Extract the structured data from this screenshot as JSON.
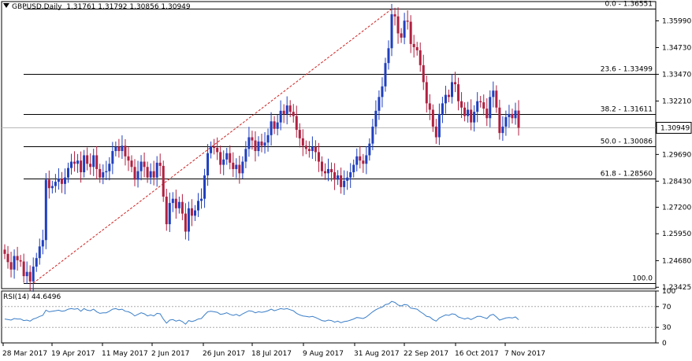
{
  "header": {
    "symbol": "GBPUSD,Daily",
    "ohlc": "1.31761 1.31792 1.30856 1.30949"
  },
  "rsi_header": {
    "label": "RSI(14) 44.6496"
  },
  "colors": {
    "bull": "#1f3fbf",
    "bear": "#b02040",
    "rsi_line": "#3a7ec8",
    "fib_line": "#000000",
    "trend_line": "#d02020",
    "level_box_fill": "#ffffff"
  },
  "chart_data": [
    {
      "type": "candlestick",
      "title": "GBPUSD,Daily",
      "y_ticks": [
        "1.35990",
        "1.34730",
        "1.33470",
        "1.32210",
        "1.30949",
        "1.29690",
        "1.28430",
        "1.27200",
        "1.25950",
        "1.24680",
        "1.23425"
      ],
      "y_range": [
        1.2336,
        1.369
      ],
      "current_price": "1.30949",
      "x_ticks": [
        "28 Mar 2017",
        "19 Apr 2017",
        "11 May 2017",
        "2 Jun 2017",
        "26 Jun 2017",
        "18 Jul 2017",
        "9 Aug 2017",
        "31 Aug 2017",
        "22 Sep 2017",
        "16 Oct 2017",
        "7 Nov 2017"
      ],
      "fib_levels": [
        {
          "label": "0.0 - 1.36551",
          "value": 1.36551
        },
        {
          "label": "23.6 - 1.33499",
          "value": 1.33499
        },
        {
          "label": "38.2 - 1.31611",
          "value": 1.31611
        },
        {
          "label": "50.0 - 1.30086",
          "value": 1.30086
        },
        {
          "label": "61.8 - 1.28560",
          "value": 1.2856
        },
        {
          "label": "100.0",
          "value": 1.2362
        }
      ],
      "trend_line": {
        "from": 1.2362,
        "to": 1.3655
      },
      "series": [
        {
          "name": "GBPUSD",
          "values": [
            1.25,
            1.2461,
            1.2426,
            1.249,
            1.247,
            1.2464,
            1.2395,
            1.2415,
            1.237,
            1.244,
            1.248,
            1.2535,
            1.2565,
            1.285,
            1.281,
            1.282,
            1.284,
            1.2855,
            1.283,
            1.286,
            1.2905,
            1.2935,
            1.2925,
            1.294,
            1.2885,
            1.2965,
            1.2925,
            1.291,
            1.2965,
            1.29,
            1.286,
            1.2885,
            1.289,
            1.2925,
            1.2985,
            1.3005,
            1.2985,
            1.301,
            1.296,
            1.294,
            1.291,
            1.285,
            1.289,
            1.2935,
            1.291,
            1.286,
            1.289,
            1.286,
            1.293,
            1.2915,
            1.277,
            1.264,
            1.274,
            1.276,
            1.2715,
            1.2745,
            1.269,
            1.2605,
            1.2715,
            1.268,
            1.2705,
            1.275,
            1.276,
            1.287,
            1.2975,
            1.3005,
            1.3,
            1.298,
            1.292,
            1.2945,
            1.2975,
            1.293,
            1.29,
            1.292,
            1.288,
            1.2935,
            1.2995,
            1.305,
            1.3035,
            1.2985,
            1.303,
            1.301,
            1.3025,
            1.306,
            1.3125,
            1.309,
            1.312,
            1.3175,
            1.316,
            1.32,
            1.317,
            1.315,
            1.3085,
            1.3045,
            1.301,
            1.2995,
            1.2985,
            1.3005,
            1.298,
            1.2935,
            1.289,
            1.288,
            1.29,
            1.2885,
            1.285,
            1.287,
            1.2815,
            1.2845,
            1.286,
            1.2885,
            1.292,
            1.296,
            1.294,
            1.2925,
            1.2965,
            1.302,
            1.31,
            1.3175,
            1.324,
            1.329,
            1.34,
            1.347,
            1.363,
            1.362,
            1.354,
            1.352,
            1.36,
            1.3595,
            1.349,
            1.3475,
            1.346,
            1.339,
            1.331,
            1.321,
            1.318,
            1.31,
            1.305,
            1.316,
            1.321,
            1.325,
            1.324,
            1.331,
            1.33,
            1.322,
            1.319,
            1.315,
            1.318,
            1.312,
            1.317,
            1.322,
            1.3215,
            1.3185,
            1.314,
            1.324,
            1.327,
            1.319,
            1.307,
            1.31,
            1.3145,
            1.316,
            1.314,
            1.3176,
            1.3095
          ]
        }
      ]
    },
    {
      "type": "line",
      "title": "RSI(14) 44.6496",
      "y_ticks": [
        "100",
        "70",
        "30",
        "0"
      ],
      "y_range": [
        0,
        100
      ],
      "series": [
        {
          "name": "RSI(14)",
          "values": [
            46,
            45,
            44,
            47,
            46,
            46,
            43,
            44,
            42,
            46,
            48,
            51,
            53,
            63,
            60,
            61,
            62,
            63,
            61,
            62,
            65,
            66,
            65,
            66,
            61,
            66,
            63,
            62,
            65,
            60,
            57,
            58,
            58,
            61,
            65,
            66,
            64,
            65,
            61,
            60,
            57,
            52,
            55,
            58,
            56,
            52,
            54,
            52,
            57,
            56,
            46,
            38,
            44,
            45,
            42,
            44,
            41,
            36,
            43,
            41,
            43,
            46,
            47,
            54,
            60,
            61,
            60,
            59,
            55,
            56,
            58,
            55,
            53,
            55,
            52,
            56,
            59,
            62,
            61,
            58,
            60,
            59,
            60,
            62,
            65,
            62,
            64,
            66,
            65,
            66,
            64,
            62,
            57,
            54,
            52,
            51,
            50,
            51,
            49,
            46,
            43,
            42,
            44,
            43,
            40,
            42,
            39,
            41,
            42,
            44,
            46,
            49,
            48,
            47,
            50,
            55,
            60,
            64,
            67,
            69,
            74,
            75,
            80,
            78,
            73,
            71,
            74,
            73,
            67,
            66,
            65,
            60,
            56,
            51,
            50,
            45,
            42,
            48,
            51,
            54,
            53,
            56,
            55,
            50,
            48,
            46,
            48,
            45,
            48,
            51,
            51,
            49,
            47,
            53,
            55,
            50,
            44,
            46,
            48,
            49,
            48,
            50,
            44.6496
          ]
        }
      ]
    }
  ]
}
